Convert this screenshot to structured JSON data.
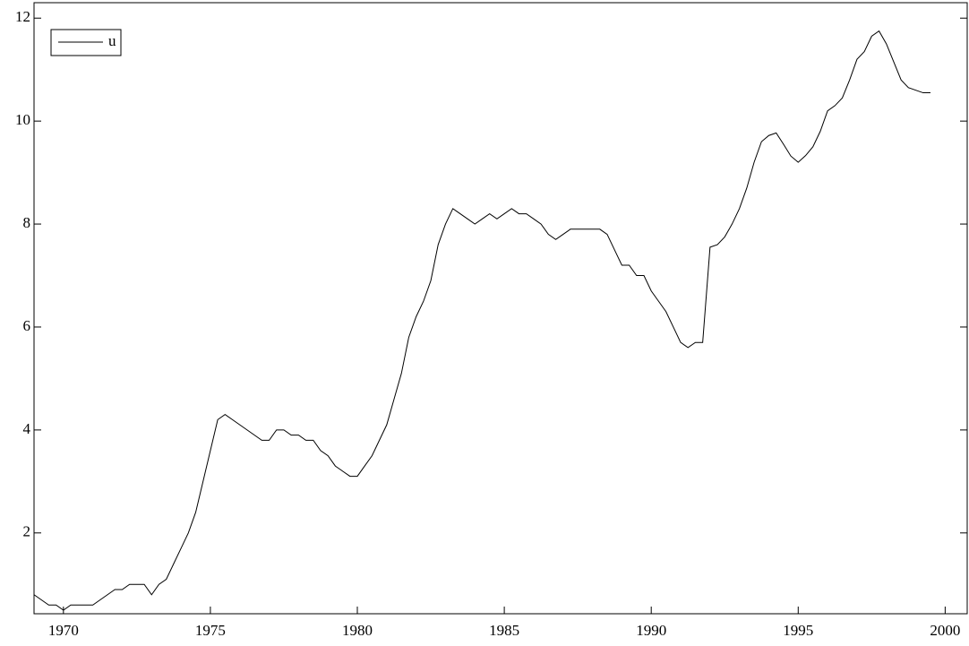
{
  "chart_data": {
    "type": "line",
    "x": [
      1969,
      1969.25,
      1969.5,
      1969.75,
      1970,
      1970.25,
      1970.5,
      1970.75,
      1971,
      1971.25,
      1971.5,
      1971.75,
      1972,
      1972.25,
      1972.5,
      1972.75,
      1973,
      1973.25,
      1973.5,
      1973.75,
      1974,
      1974.25,
      1974.5,
      1974.75,
      1975,
      1975.25,
      1975.5,
      1975.75,
      1976,
      1976.25,
      1976.5,
      1976.75,
      1977,
      1977.25,
      1977.5,
      1977.75,
      1978,
      1978.25,
      1978.5,
      1978.75,
      1979,
      1979.25,
      1979.5,
      1979.75,
      1980,
      1980.25,
      1980.5,
      1980.75,
      1981,
      1981.25,
      1981.5,
      1981.75,
      1982,
      1982.25,
      1982.5,
      1982.75,
      1983,
      1983.25,
      1983.5,
      1983.75,
      1984,
      1984.25,
      1984.5,
      1984.75,
      1985,
      1985.25,
      1985.5,
      1985.75,
      1986,
      1986.25,
      1986.5,
      1986.75,
      1987,
      1987.25,
      1987.5,
      1987.75,
      1988,
      1988.25,
      1988.5,
      1988.75,
      1989,
      1989.25,
      1989.5,
      1989.75,
      1990,
      1990.25,
      1990.5,
      1990.75,
      1991,
      1991.25,
      1991.5,
      1991.75,
      1992,
      1992.25,
      1992.5,
      1992.75,
      1993,
      1993.25,
      1993.5,
      1993.75,
      1994,
      1994.25,
      1994.5,
      1994.75,
      1995,
      1995.25,
      1995.5,
      1995.75,
      1996,
      1996.25,
      1996.5,
      1996.75,
      1997,
      1997.25,
      1997.5,
      1997.75,
      1998,
      1998.25,
      1998.5,
      1998.75,
      1999,
      1999.25,
      1999.5
    ],
    "series": [
      {
        "name": "u",
        "color": "#000000",
        "values": [
          0.8,
          0.7,
          0.6,
          0.6,
          0.5,
          0.6,
          0.6,
          0.6,
          0.6,
          0.7,
          0.8,
          0.9,
          0.9,
          1.0,
          1.0,
          1.0,
          0.8,
          1.0,
          1.1,
          1.4,
          1.7,
          2.0,
          2.4,
          3.0,
          3.6,
          4.2,
          4.3,
          4.2,
          4.1,
          4.0,
          3.9,
          3.8,
          3.8,
          4.0,
          4.0,
          3.9,
          3.9,
          3.8,
          3.8,
          3.6,
          3.5,
          3.3,
          3.2,
          3.1,
          3.1,
          3.3,
          3.5,
          3.8,
          4.1,
          4.6,
          5.1,
          5.8,
          6.2,
          6.5,
          6.9,
          7.6,
          8.0,
          8.3,
          8.2,
          8.1,
          8.0,
          8.1,
          8.2,
          8.1,
          8.2,
          8.3,
          8.2,
          8.2,
          8.1,
          8.0,
          7.8,
          7.7,
          7.8,
          7.9,
          7.9,
          7.9,
          7.9,
          7.9,
          7.8,
          7.5,
          7.2,
          7.2,
          7.0,
          7.0,
          6.7,
          6.5,
          6.3,
          6.0,
          5.7,
          5.6,
          5.7,
          5.7,
          7.55,
          7.6,
          7.75,
          8.0,
          8.3,
          8.7,
          9.2,
          9.6,
          9.72,
          9.77,
          9.55,
          9.32,
          9.2,
          9.33,
          9.5,
          9.8,
          10.2,
          10.3,
          10.45,
          10.8,
          11.2,
          11.35,
          11.65,
          11.75,
          11.5,
          11.15,
          10.8,
          10.65,
          10.6,
          10.55,
          10.55
        ]
      }
    ],
    "xlim": [
      1969,
      2000.75
    ],
    "xticks": [
      1970,
      1975,
      1980,
      1985,
      1990,
      1995,
      2000
    ],
    "ylim": [
      0.43,
      12.3
    ],
    "yticks": [
      2,
      4,
      6,
      8,
      10,
      12
    ],
    "legend": "upper left"
  }
}
